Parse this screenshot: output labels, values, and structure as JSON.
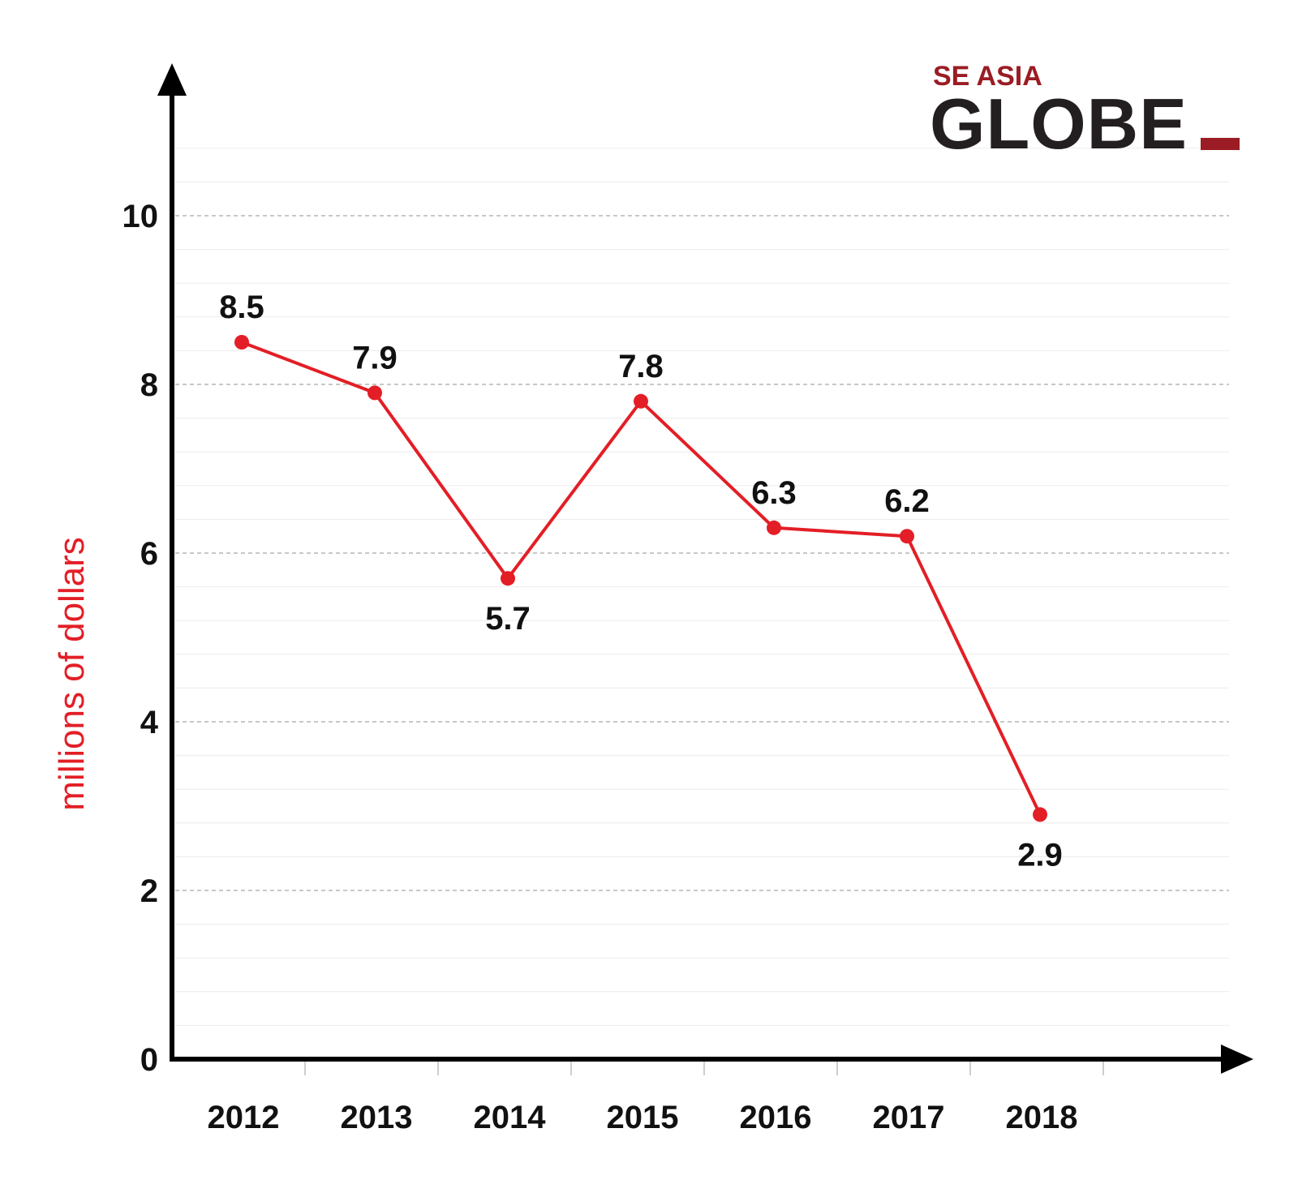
{
  "logo": {
    "top_text": "SE ASIA",
    "main_text": "GLOBE",
    "accent_color": "#9b1c24",
    "text_color": "#231f20"
  },
  "chart_data": {
    "type": "line",
    "ylabel": "millions of dollars",
    "xlabel": "",
    "title": "",
    "categories": [
      "2012",
      "2013",
      "2014",
      "2015",
      "2016",
      "2017",
      "2018"
    ],
    "series": [
      {
        "values": [
          8.5,
          7.9,
          5.7,
          7.8,
          6.3,
          6.2,
          2.9
        ],
        "color": "#e31e26"
      }
    ],
    "y_ticks": [
      0,
      2,
      4,
      6,
      8,
      10
    ],
    "ylim": [
      0,
      11.5
    ],
    "grid": true,
    "data_labels": [
      "8.5",
      "7.9",
      "5.7",
      "7.8",
      "6.3",
      "6.2",
      "2.9"
    ],
    "label_positions": [
      "above",
      "above",
      "below",
      "above",
      "above",
      "above",
      "below"
    ]
  }
}
